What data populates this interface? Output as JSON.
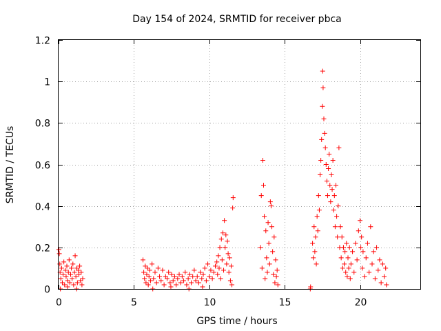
{
  "chart_data": {
    "type": "scatter",
    "title": "Day 154 of 2024, SRMTID for receiver pbca",
    "xlabel": "GPS time / hours",
    "ylabel": "SRMTID / TECUs",
    "xlim": [
      0,
      24
    ],
    "ylim": [
      0,
      1.2
    ],
    "x_ticks": [
      {
        "value": 0,
        "label": "0"
      },
      {
        "value": 5,
        "label": "5"
      },
      {
        "value": 10,
        "label": "10"
      },
      {
        "value": 15,
        "label": "15"
      },
      {
        "value": 20,
        "label": "20"
      }
    ],
    "y_ticks": [
      {
        "value": 0,
        "label": "0"
      },
      {
        "value": 0.2,
        "label": "0.2"
      },
      {
        "value": 0.4,
        "label": "0.4"
      },
      {
        "value": 0.6,
        "label": "0.6"
      },
      {
        "value": 0.8,
        "label": "0.8"
      },
      {
        "value": 1.0,
        "label": "1"
      },
      {
        "value": 1.2,
        "label": "1.2"
      }
    ],
    "grid": true,
    "marker": "+",
    "color": "#ff0000",
    "series": [
      {
        "name": "SRMTID",
        "points": [
          [
            0.02,
            0.19
          ],
          [
            0.05,
            0.17
          ],
          [
            0.08,
            0.12
          ],
          [
            0.1,
            0.08
          ],
          [
            0.15,
            0.05
          ],
          [
            0.2,
            0.1
          ],
          [
            0.25,
            0.03
          ],
          [
            0.3,
            0.07
          ],
          [
            0.35,
            0.13
          ],
          [
            0.4,
            0.02
          ],
          [
            0.45,
            0.09
          ],
          [
            0.5,
            0.06
          ],
          [
            0.55,
            0.11
          ],
          [
            0.6,
            0.04
          ],
          [
            0.65,
            0.08
          ],
          [
            0.7,
            0.14
          ],
          [
            0.75,
            0.03
          ],
          [
            0.8,
            0.07
          ],
          [
            0.85,
            0.1
          ],
          [
            0.9,
            0.05
          ],
          [
            0.95,
            0.12
          ],
          [
            1.0,
            0.02
          ],
          [
            1.05,
            0.08
          ],
          [
            1.1,
            0.16
          ],
          [
            1.15,
            0.06
          ],
          [
            1.2,
            0.1
          ],
          [
            1.25,
            0.03
          ],
          [
            1.3,
            0.09
          ],
          [
            1.35,
            0.07
          ],
          [
            1.4,
            0.11
          ],
          [
            1.45,
            0.04
          ],
          [
            1.5,
            0.08
          ],
          [
            1.55,
            0.02
          ],
          [
            1.6,
            0.05
          ],
          [
            0.12,
            0.0
          ],
          [
            0.6,
            0.01
          ],
          [
            1.2,
            0.0
          ],
          [
            5.6,
            0.14
          ],
          [
            5.65,
            0.08
          ],
          [
            5.7,
            0.05
          ],
          [
            5.75,
            0.11
          ],
          [
            5.8,
            0.03
          ],
          [
            5.85,
            0.07
          ],
          [
            5.9,
            0.1
          ],
          [
            5.95,
            0.02
          ],
          [
            6.0,
            0.06
          ],
          [
            6.05,
            0.09
          ],
          [
            6.1,
            0.04
          ],
          [
            6.2,
            0.12
          ],
          [
            6.3,
            0.05
          ],
          [
            6.4,
            0.08
          ],
          [
            6.5,
            0.03
          ],
          [
            6.6,
            0.1
          ],
          [
            6.7,
            0.06
          ],
          [
            6.8,
            0.04
          ],
          [
            6.9,
            0.09
          ],
          [
            7.0,
            0.02
          ],
          [
            7.1,
            0.06
          ],
          [
            7.2,
            0.05
          ],
          [
            7.3,
            0.08
          ],
          [
            7.4,
            0.03
          ],
          [
            7.5,
            0.07
          ],
          [
            7.6,
            0.04
          ],
          [
            7.7,
            0.06
          ],
          [
            7.8,
            0.02
          ],
          [
            7.9,
            0.05
          ],
          [
            8.0,
            0.07
          ],
          [
            8.1,
            0.03
          ],
          [
            8.2,
            0.06
          ],
          [
            8.3,
            0.04
          ],
          [
            8.4,
            0.08
          ],
          [
            8.5,
            0.02
          ],
          [
            8.6,
            0.05
          ],
          [
            8.7,
            0.07
          ],
          [
            8.8,
            0.03
          ],
          [
            8.9,
            0.06
          ],
          [
            9.0,
            0.09
          ],
          [
            9.1,
            0.04
          ],
          [
            9.2,
            0.06
          ],
          [
            9.3,
            0.03
          ],
          [
            9.4,
            0.08
          ],
          [
            9.5,
            0.05
          ],
          [
            9.6,
            0.07
          ],
          [
            9.7,
            0.1
          ],
          [
            9.8,
            0.04
          ],
          [
            9.9,
            0.12
          ],
          [
            10.0,
            0.06
          ],
          [
            10.1,
            0.09
          ],
          [
            10.2,
            0.05
          ],
          [
            10.3,
            0.08
          ],
          [
            10.4,
            0.11
          ],
          [
            6.25,
            0.0
          ],
          [
            7.45,
            0.01
          ],
          [
            8.65,
            0.0
          ],
          [
            9.55,
            0.01
          ],
          [
            10.5,
            0.13
          ],
          [
            10.55,
            0.07
          ],
          [
            10.6,
            0.16
          ],
          [
            10.65,
            0.1
          ],
          [
            10.7,
            0.2
          ],
          [
            10.75,
            0.05
          ],
          [
            10.8,
            0.24
          ],
          [
            10.85,
            0.14
          ],
          [
            10.9,
            0.27
          ],
          [
            10.95,
            0.09
          ],
          [
            11.0,
            0.33
          ],
          [
            11.05,
            0.2
          ],
          [
            11.1,
            0.26
          ],
          [
            11.15,
            0.12
          ],
          [
            11.2,
            0.23
          ],
          [
            11.25,
            0.17
          ],
          [
            11.3,
            0.08
          ],
          [
            11.35,
            0.15
          ],
          [
            11.4,
            0.04
          ],
          [
            11.45,
            0.11
          ],
          [
            11.5,
            0.02
          ],
          [
            11.55,
            0.39
          ],
          [
            11.58,
            0.44
          ],
          [
            13.4,
            0.2
          ],
          [
            13.45,
            0.45
          ],
          [
            13.5,
            0.1
          ],
          [
            13.55,
            0.62
          ],
          [
            13.6,
            0.5
          ],
          [
            13.65,
            0.35
          ],
          [
            13.7,
            0.05
          ],
          [
            13.75,
            0.28
          ],
          [
            13.8,
            0.15
          ],
          [
            13.85,
            0.08
          ],
          [
            13.9,
            0.32
          ],
          [
            13.95,
            0.22
          ],
          [
            14.0,
            0.12
          ],
          [
            14.05,
            0.42
          ],
          [
            14.1,
            0.4
          ],
          [
            14.15,
            0.3
          ],
          [
            14.2,
            0.18
          ],
          [
            14.25,
            0.07
          ],
          [
            14.3,
            0.25
          ],
          [
            14.35,
            0.03
          ],
          [
            14.4,
            0.14
          ],
          [
            14.45,
            0.06
          ],
          [
            14.5,
            0.09
          ],
          [
            14.55,
            0.02
          ],
          [
            16.7,
            0.0
          ],
          [
            16.72,
            0.01
          ],
          [
            16.85,
            0.22
          ],
          [
            16.9,
            0.15
          ],
          [
            16.95,
            0.3
          ],
          [
            17.0,
            0.18
          ],
          [
            17.05,
            0.25
          ],
          [
            17.1,
            0.12
          ],
          [
            17.15,
            0.35
          ],
          [
            17.2,
            0.28
          ],
          [
            17.25,
            0.45
          ],
          [
            17.3,
            0.38
          ],
          [
            17.35,
            0.55
          ],
          [
            17.4,
            0.62
          ],
          [
            17.45,
            0.72
          ],
          [
            17.5,
            0.88
          ],
          [
            17.52,
            1.05
          ],
          [
            17.55,
            0.97
          ],
          [
            17.6,
            0.82
          ],
          [
            17.65,
            0.75
          ],
          [
            17.7,
            0.68
          ],
          [
            17.75,
            0.6
          ],
          [
            17.8,
            0.52
          ],
          [
            17.85,
            0.45
          ],
          [
            17.9,
            0.58
          ],
          [
            17.95,
            0.65
          ],
          [
            18.0,
            0.5
          ],
          [
            18.05,
            0.42
          ],
          [
            18.1,
            0.55
          ],
          [
            18.15,
            0.48
          ],
          [
            18.2,
            0.62
          ],
          [
            18.25,
            0.38
          ],
          [
            18.3,
            0.45
          ],
          [
            18.35,
            0.3
          ],
          [
            18.4,
            0.5
          ],
          [
            18.45,
            0.35
          ],
          [
            18.5,
            0.25
          ],
          [
            18.55,
            0.4
          ],
          [
            18.6,
            0.68
          ],
          [
            18.65,
            0.2
          ],
          [
            18.7,
            0.3
          ],
          [
            18.75,
            0.15
          ],
          [
            18.8,
            0.25
          ],
          [
            18.85,
            0.1
          ],
          [
            18.9,
            0.2
          ],
          [
            18.95,
            0.12
          ],
          [
            19.0,
            0.18
          ],
          [
            19.05,
            0.08
          ],
          [
            19.1,
            0.22
          ],
          [
            19.15,
            0.06
          ],
          [
            19.2,
            0.15
          ],
          [
            19.25,
            0.1
          ],
          [
            19.3,
            0.2
          ],
          [
            19.35,
            0.05
          ],
          [
            19.4,
            0.12
          ],
          [
            19.5,
            0.18
          ],
          [
            19.6,
            0.08
          ],
          [
            19.7,
            0.22
          ],
          [
            19.8,
            0.14
          ],
          [
            19.9,
            0.28
          ],
          [
            20.0,
            0.33
          ],
          [
            20.05,
            0.2
          ],
          [
            20.1,
            0.25
          ],
          [
            20.15,
            0.1
          ],
          [
            20.2,
            0.18
          ],
          [
            20.3,
            0.06
          ],
          [
            20.4,
            0.15
          ],
          [
            20.5,
            0.22
          ],
          [
            20.6,
            0.08
          ],
          [
            20.7,
            0.3
          ],
          [
            20.8,
            0.12
          ],
          [
            20.9,
            0.18
          ],
          [
            21.0,
            0.05
          ],
          [
            21.1,
            0.2
          ],
          [
            21.2,
            0.09
          ],
          [
            21.3,
            0.14
          ],
          [
            21.4,
            0.03
          ],
          [
            21.5,
            0.12
          ],
          [
            21.6,
            0.06
          ],
          [
            21.7,
            0.1
          ],
          [
            21.75,
            0.02
          ]
        ]
      }
    ]
  }
}
